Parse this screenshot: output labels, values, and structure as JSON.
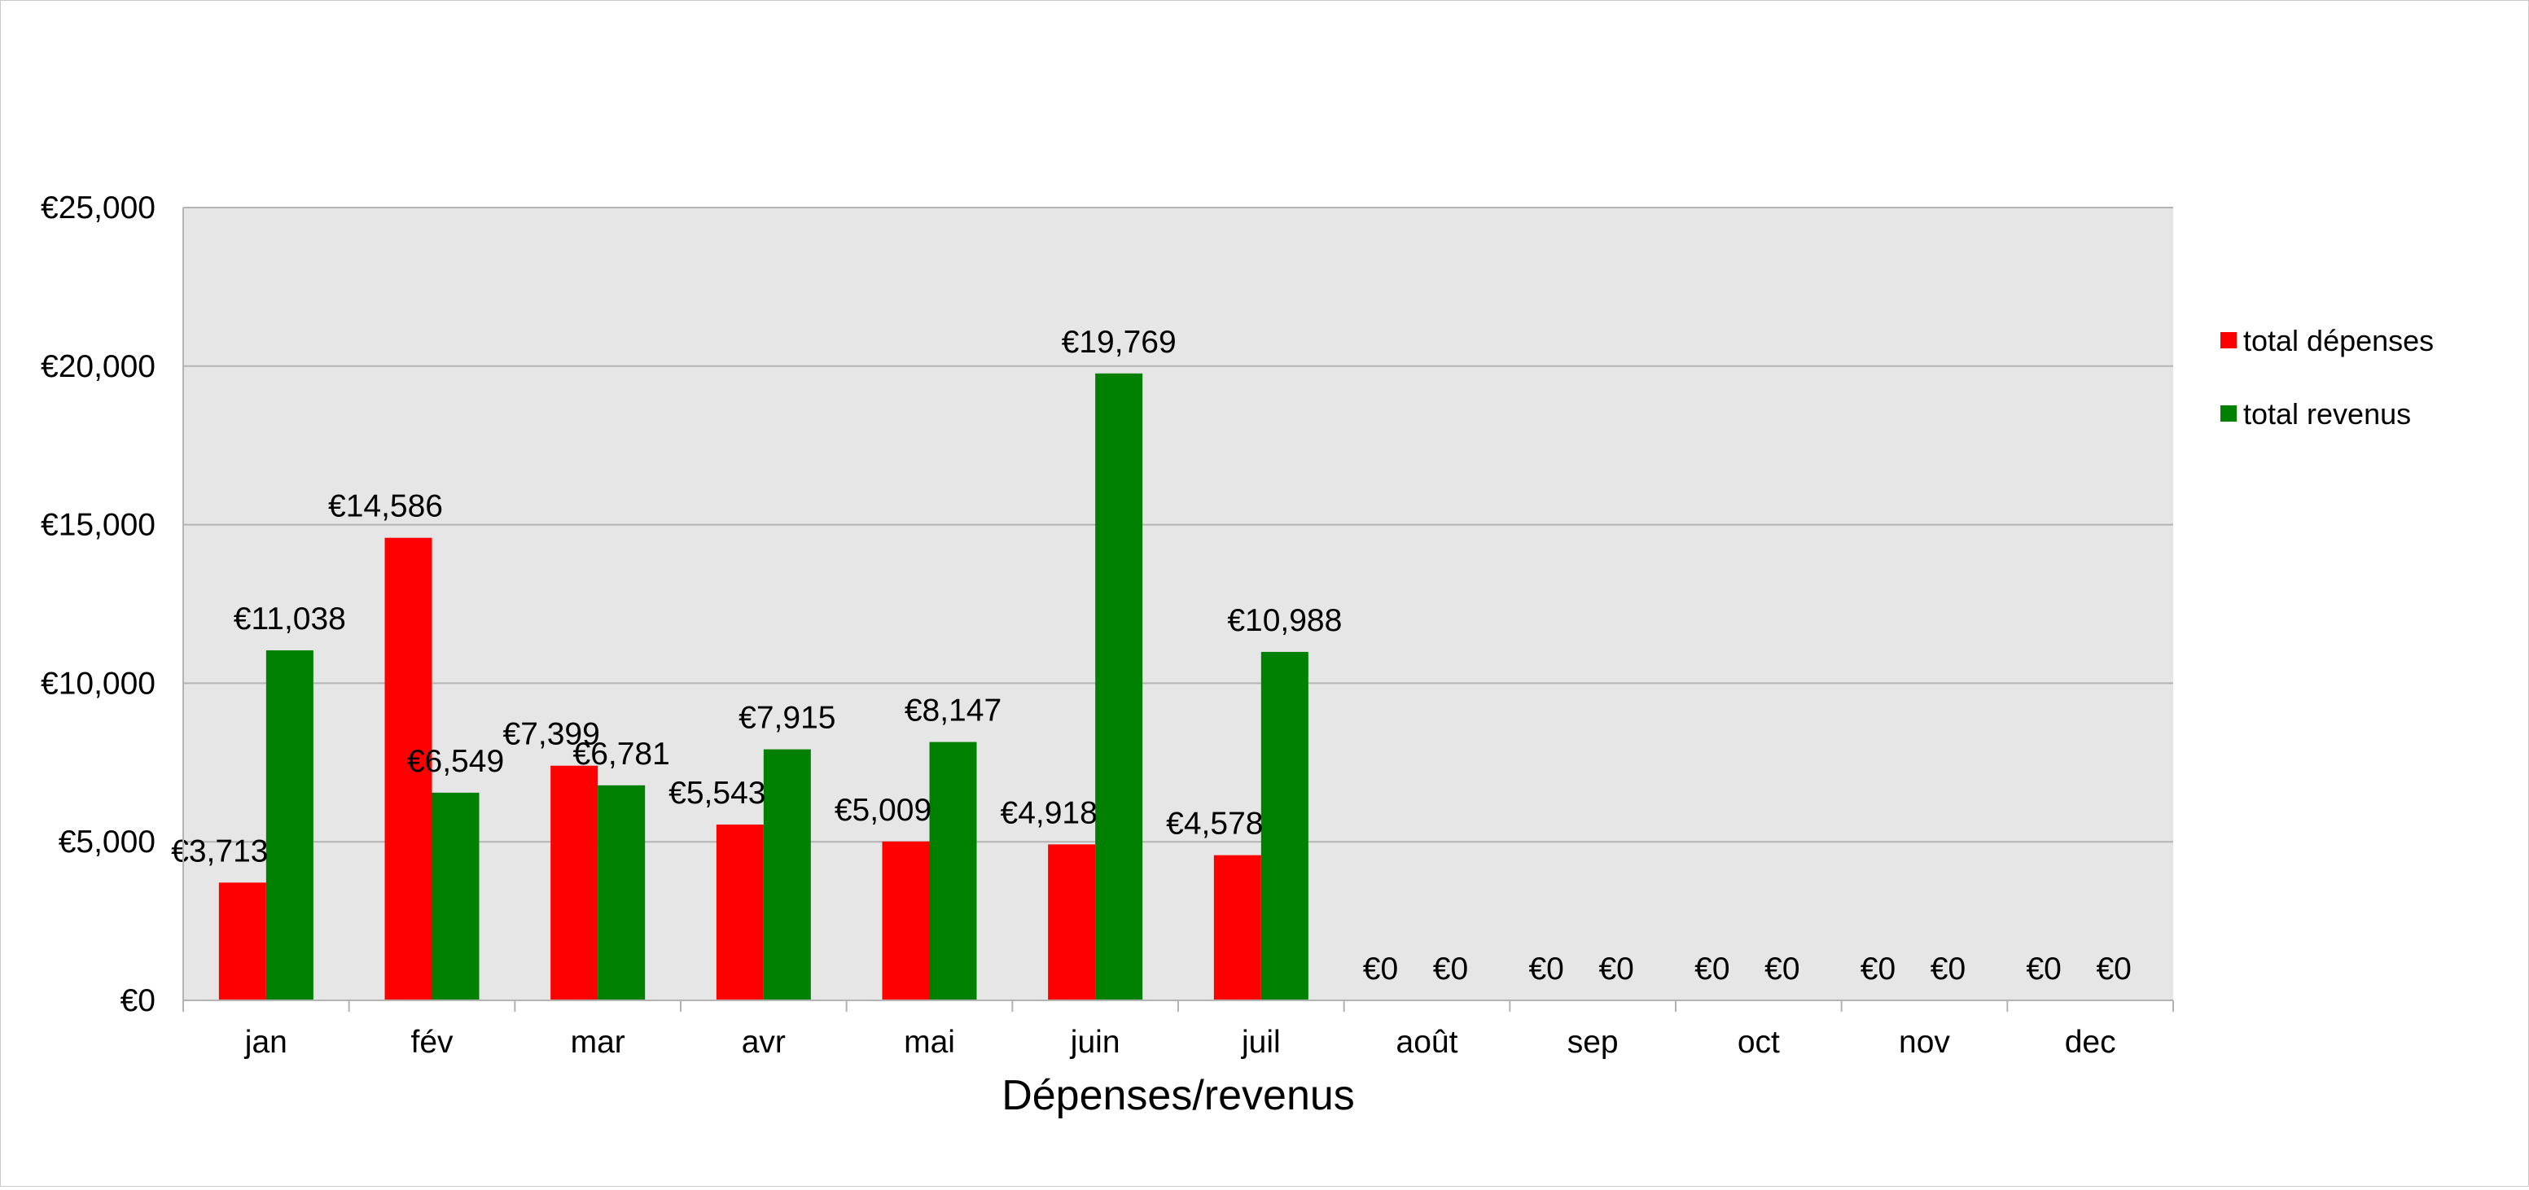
{
  "chart_data": {
    "type": "bar",
    "title": "",
    "xlabel": "Dépenses/revenus",
    "ylabel": "",
    "ylim": [
      0,
      25000
    ],
    "yticks": [
      0,
      5000,
      10000,
      15000,
      20000,
      25000
    ],
    "ytick_labels": [
      "€0",
      "€5,000",
      "€10,000",
      "€15,000",
      "€20,000",
      "€25,000"
    ],
    "grid": true,
    "legend_position": "right",
    "categories": [
      "jan",
      "fév",
      "mar",
      "avr",
      "mai",
      "juin",
      "juil",
      "août",
      "sep",
      "oct",
      "nov",
      "dec"
    ],
    "series": [
      {
        "name": "total dépenses",
        "color": "#ff0000",
        "values": [
          3713,
          14586,
          7399,
          5543,
          5009,
          4918,
          4578,
          0,
          0,
          0,
          0,
          0
        ],
        "labels": [
          "€3,713",
          "€14,586",
          "€7,399",
          "€5,543",
          "€5,009",
          "€4,918",
          "€4,578",
          "€0",
          "€0",
          "€0",
          "€0",
          "€0"
        ]
      },
      {
        "name": "total revenus",
        "color": "#008000",
        "values": [
          11038,
          6549,
          6781,
          7915,
          8147,
          19769,
          10988,
          0,
          0,
          0,
          0,
          0
        ],
        "labels": [
          "€11,038",
          "€6,549",
          "€6,781",
          "€7,915",
          "€8,147",
          "€19,769",
          "€10,988",
          "€0",
          "€0",
          "€0",
          "€0",
          "€0"
        ]
      }
    ],
    "plot_background": "#e6e6e6",
    "gridline_color": "#b3b3b3"
  }
}
